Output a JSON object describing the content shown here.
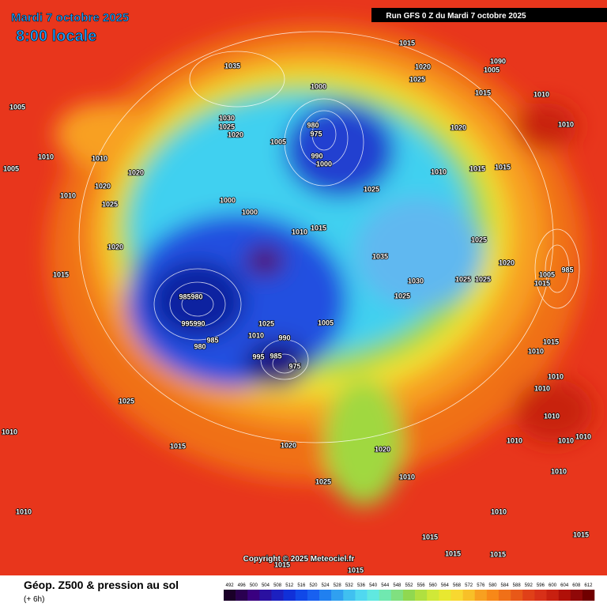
{
  "header": {
    "date": "Mardi 7 octobre 2025",
    "time": "8:00 locale",
    "run": "Run GFS 0 Z du Mardi 7 octobre 2025"
  },
  "copyright": "Copyright © 2025 Meteociel.fr",
  "footer": {
    "title": "Géop. Z500 & pression au sol",
    "step": "(+ 6h)"
  },
  "colorbar": {
    "labels": [
      492,
      496,
      500,
      504,
      508,
      512,
      516,
      520,
      524,
      528,
      532,
      536,
      540,
      544,
      548,
      552,
      556,
      560,
      564,
      568,
      572,
      576,
      580,
      584,
      588,
      592,
      596,
      600,
      604,
      608,
      612
    ],
    "colors": [
      "#1a0028",
      "#2a0050",
      "#3a0080",
      "#2a10a0",
      "#1c20c0",
      "#1030d8",
      "#1048e8",
      "#1860f0",
      "#2080f0",
      "#30a0f0",
      "#40c0f0",
      "#50d8f0",
      "#60e8e0",
      "#70e8b0",
      "#80e080",
      "#90d850",
      "#b0e040",
      "#d0e838",
      "#e8e830",
      "#f8d830",
      "#f8c028",
      "#f8a020",
      "#f88818",
      "#f07018",
      "#e85818",
      "#e04018",
      "#d83018",
      "#c82010",
      "#b01008",
      "#900808",
      "#700000"
    ]
  },
  "isobar_labels": [
    1015,
    1020,
    1025,
    1090,
    1005,
    1035,
    1000,
    1015,
    1010,
    1005,
    1030,
    1025,
    1020,
    980,
    975,
    1005,
    1020,
    1010,
    990,
    1000,
    1010,
    1010,
    1005,
    1020,
    1010,
    1015,
    1015,
    1020,
    1025,
    1010,
    1025,
    1000,
    1000,
    1010,
    1015,
    1020,
    1025,
    1035,
    1020,
    985,
    1015,
    1030,
    1025,
    1025,
    1005,
    1015,
    985,
    980,
    1025,
    995,
    990,
    1025,
    1005,
    1010,
    985,
    980,
    990,
    1015,
    1010,
    995,
    985,
    975,
    1010,
    1010,
    1025,
    1010,
    1010,
    1010,
    1015,
    1020,
    1010,
    1010,
    1020,
    1010,
    1025,
    1010,
    1010,
    1010,
    1015,
    1015,
    1015,
    1015,
    1015,
    1015
  ]
}
